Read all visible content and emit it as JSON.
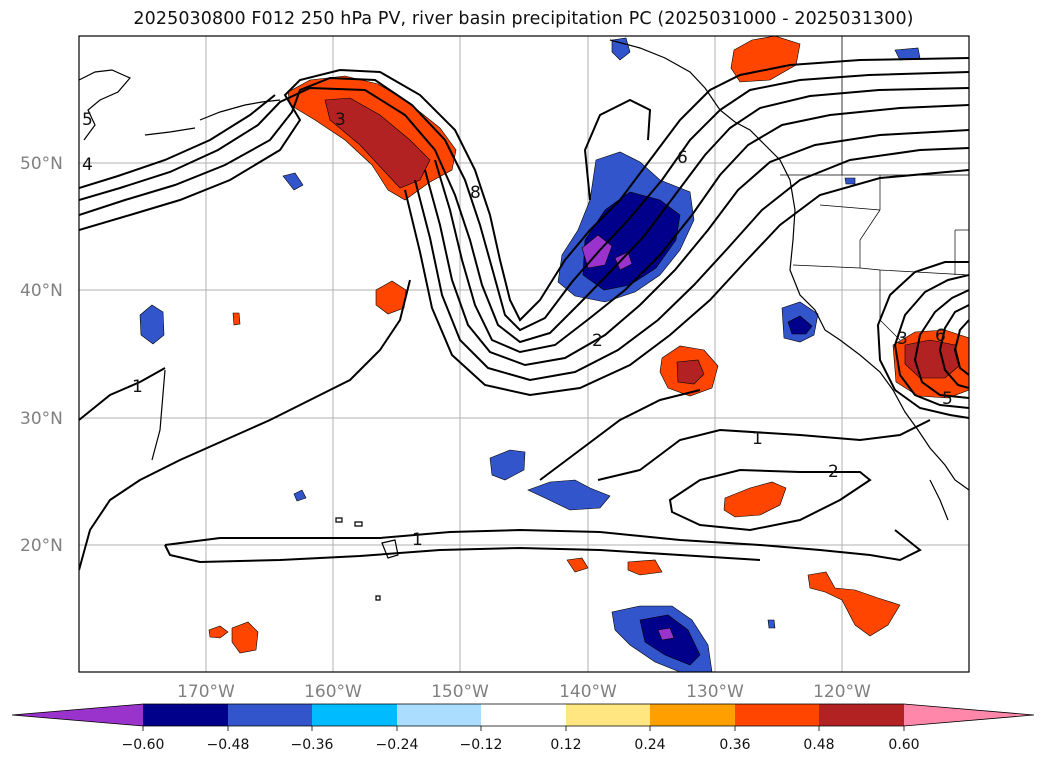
{
  "title": "2025030800 F012 250 hPa PV, river basin precipitation PC (2025031000 - 2025031300)",
  "map": {
    "lat_labels": [
      "50°N",
      "40°N",
      "30°N",
      "20°N"
    ],
    "lon_labels": [
      "170°W",
      "160°W",
      "150°W",
      "140°W",
      "130°W",
      "120°W"
    ],
    "pv_labels": [
      "5",
      "4",
      "3",
      "8",
      "6",
      "1",
      "2",
      "1",
      "2",
      "1",
      "3",
      "6",
      "5"
    ]
  },
  "colorbar": {
    "ticks": [
      "−0.60",
      "−0.48",
      "−0.36",
      "−0.24",
      "−0.12",
      "0.12",
      "0.24",
      "0.36",
      "0.48",
      "0.60"
    ],
    "colors": [
      "#9933cc",
      "#00008b",
      "#3355cc",
      "#00bbff",
      "#aaddff",
      "#ffffff",
      "#ffe680",
      "#ffa000",
      "#ff4500",
      "#b22222",
      "#ff88aa"
    ]
  }
}
